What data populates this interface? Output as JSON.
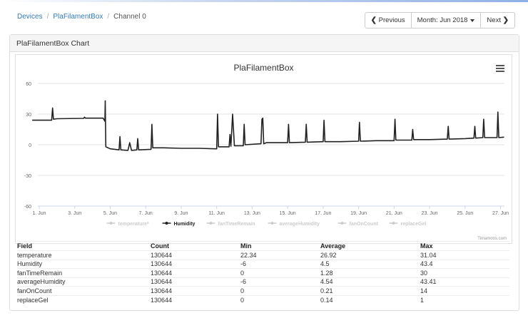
{
  "breadcrumb": {
    "devices": "Devices",
    "device": "PlaFilamentBox",
    "channel": "Channel 0"
  },
  "nav": {
    "previous": "Previous",
    "month": "Month: Jun 2018",
    "next": "Next"
  },
  "panel": {
    "title": "PlaFilamentBox Chart"
  },
  "chart_data": {
    "type": "line",
    "title": "PlaFilamentBox",
    "credits": "Timamoos.com",
    "ylim": [
      -60,
      60
    ],
    "y_ticks": [
      "60",
      "30",
      "0",
      "-30",
      "-60"
    ],
    "x_ticks": [
      {
        "day": 1,
        "label": "1. Jun"
      },
      {
        "day": 3,
        "label": "3. Jun"
      },
      {
        "day": 5,
        "label": "5. Jun"
      },
      {
        "day": 7,
        "label": "7. Jun"
      },
      {
        "day": 9,
        "label": "9. Jun"
      },
      {
        "day": 11,
        "label": "11. Jun"
      },
      {
        "day": 13,
        "label": "13. Jun"
      },
      {
        "day": 15,
        "label": "15. Jun"
      },
      {
        "day": 17,
        "label": "17. Jun"
      },
      {
        "day": 19,
        "label": "19. Jun"
      },
      {
        "day": 21,
        "label": "21. Jun"
      },
      {
        "day": 23,
        "label": "23. Jun"
      },
      {
        "day": 25,
        "label": "25. Jun"
      },
      {
        "day": 27,
        "label": "27. Jun"
      }
    ],
    "xlim": [
      1,
      27.3
    ],
    "grid": true,
    "legend_position": "bottom",
    "legend": [
      {
        "name": "temperature*",
        "visible": false
      },
      {
        "name": "Humidity",
        "visible": true
      },
      {
        "name": "fanTimeRemain",
        "visible": false
      },
      {
        "name": "averageHumidity",
        "visible": false
      },
      {
        "name": "fanOnCount",
        "visible": false
      },
      {
        "name": "replaceGel",
        "visible": false
      }
    ],
    "series": [
      {
        "name": "Humidity",
        "color": "#222222",
        "points": [
          [
            0.6,
            24
          ],
          [
            1.7,
            24
          ],
          [
            1.75,
            36
          ],
          [
            1.8,
            25
          ],
          [
            2.0,
            25.5
          ],
          [
            3.5,
            25.8
          ],
          [
            3.55,
            27
          ],
          [
            3.6,
            26
          ],
          [
            4.6,
            26
          ],
          [
            4.7,
            23
          ],
          [
            4.72,
            43
          ],
          [
            4.75,
            -2
          ],
          [
            5.0,
            -4
          ],
          [
            5.5,
            -5
          ],
          [
            5.55,
            8
          ],
          [
            5.6,
            -5
          ],
          [
            6.0,
            -5.5
          ],
          [
            6.1,
            2
          ],
          [
            6.2,
            -5.5
          ],
          [
            6.5,
            -5
          ],
          [
            6.55,
            6
          ],
          [
            6.6,
            -5
          ],
          [
            7.3,
            -4.5
          ],
          [
            7.35,
            20
          ],
          [
            7.4,
            -3
          ],
          [
            8.0,
            -3
          ],
          [
            9.0,
            -3.5
          ],
          [
            10.0,
            -3.5
          ],
          [
            10.9,
            -4
          ],
          [
            11.0,
            -4
          ],
          [
            11.05,
            30
          ],
          [
            11.1,
            -2
          ],
          [
            11.7,
            -2
          ],
          [
            11.75,
            10
          ],
          [
            11.8,
            -1.5
          ],
          [
            11.9,
            30
          ],
          [
            12.0,
            -1
          ],
          [
            12.5,
            -1
          ],
          [
            12.55,
            20
          ],
          [
            12.6,
            0
          ],
          [
            13.5,
            1
          ],
          [
            13.55,
            25
          ],
          [
            13.6,
            26
          ],
          [
            13.65,
            1
          ],
          [
            13.8,
            2
          ],
          [
            14.0,
            2
          ],
          [
            14.5,
            2
          ],
          [
            15.0,
            2
          ],
          [
            15.05,
            20
          ],
          [
            15.1,
            2
          ],
          [
            16.0,
            2.5
          ],
          [
            16.05,
            20
          ],
          [
            16.1,
            2.5
          ],
          [
            17.0,
            3
          ],
          [
            17.05,
            24
          ],
          [
            17.1,
            3
          ],
          [
            18.0,
            3
          ],
          [
            19.0,
            3.5
          ],
          [
            19.05,
            22
          ],
          [
            19.1,
            3.5
          ],
          [
            20.0,
            4
          ],
          [
            21.0,
            4
          ],
          [
            21.05,
            25
          ],
          [
            21.1,
            4.5
          ],
          [
            22.0,
            4.5
          ],
          [
            22.05,
            15
          ],
          [
            22.1,
            5
          ],
          [
            23.0,
            5
          ],
          [
            24.0,
            5.5
          ],
          [
            24.05,
            18
          ],
          [
            24.1,
            5.5
          ],
          [
            25.0,
            6
          ],
          [
            25.5,
            6.5
          ],
          [
            25.55,
            18
          ],
          [
            25.6,
            6.5
          ],
          [
            26.0,
            7
          ],
          [
            26.05,
            25
          ],
          [
            26.1,
            7
          ],
          [
            26.8,
            7
          ],
          [
            26.85,
            32
          ],
          [
            26.9,
            7
          ],
          [
            27.2,
            7.5
          ]
        ]
      }
    ]
  },
  "table": {
    "headers": [
      "Field",
      "Count",
      "Min",
      "Average",
      "Max"
    ],
    "rows": [
      [
        "temperature",
        "130644",
        "22.34",
        "26.92",
        "31.04"
      ],
      [
        "Humidity",
        "130644",
        "-6",
        "4.5",
        "43.4"
      ],
      [
        "fanTimeRemain",
        "130644",
        "0",
        "1.28",
        "30"
      ],
      [
        "averageHumidity",
        "130644",
        "-6",
        "4.54",
        "43.41"
      ],
      [
        "fanOnCount",
        "130644",
        "0",
        "0.21",
        "14"
      ],
      [
        "replaceGel",
        "130644",
        "0",
        "0.14",
        "1"
      ]
    ]
  }
}
